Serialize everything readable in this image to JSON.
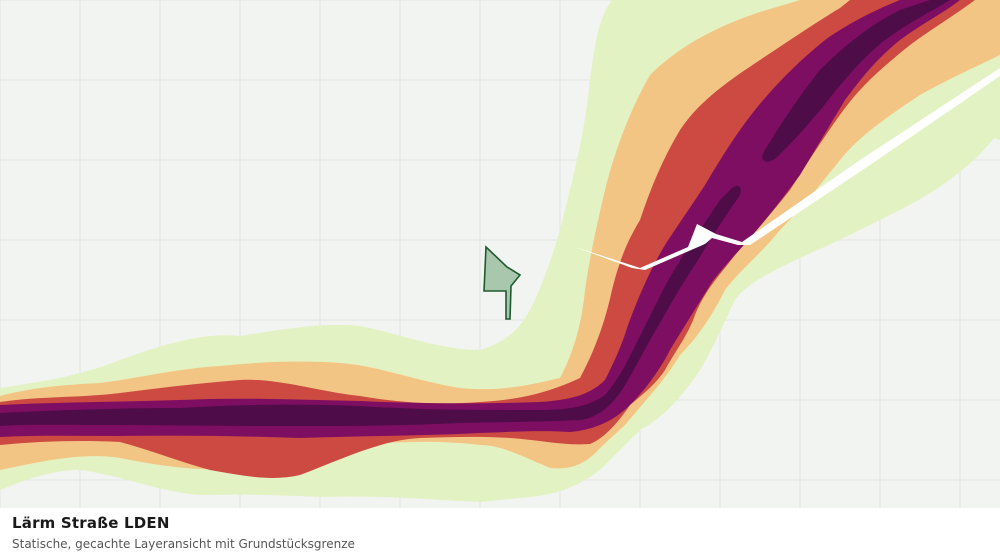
{
  "caption": {
    "title": "Lärm Straße LDEN",
    "subtitle": "Statische, gecachte Layeransicht mit Grundstücksgrenze"
  },
  "map": {
    "background_color": "#f2f4f2",
    "grid_color": "#e0e4e0",
    "noise_bands": [
      {
        "level": 1,
        "color": "#e3f2c2"
      },
      {
        "level": 2,
        "color": "#f3c585"
      },
      {
        "level": 3,
        "color": "#cc4a41"
      },
      {
        "level": 4,
        "color": "#7e0e62"
      },
      {
        "level": 5,
        "color": "#4e0c48"
      }
    ],
    "parcel": {
      "fill": "#a9c7ad",
      "stroke": "#1f5a2e"
    }
  }
}
